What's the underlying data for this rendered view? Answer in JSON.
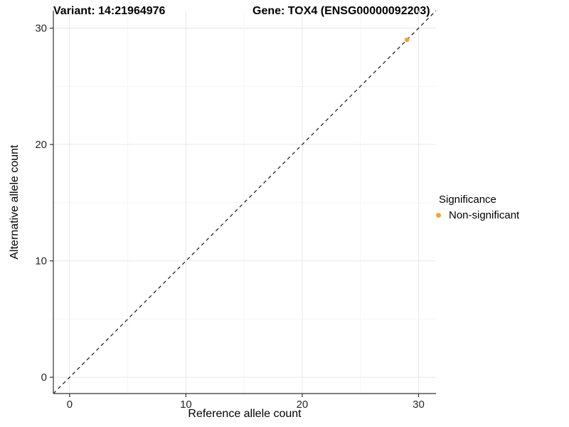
{
  "title": {
    "variant": "Variant: 14:21964976",
    "gene": "Gene: TOX4 (ENSG00000092203)"
  },
  "legend": {
    "title": "Significance",
    "items": [
      {
        "label": "Non-significant",
        "color": "#F6A23C"
      }
    ]
  },
  "chart_data": {
    "type": "scatter",
    "title": "Variant: 14:21964976    Gene: TOX4 (ENSG00000092203)",
    "xlabel": "Reference allele count",
    "ylabel": "Alternative allele count",
    "xlim": [
      -1.4,
      31.5
    ],
    "ylim": [
      -1.4,
      31.5
    ],
    "x_ticks": [
      0,
      10,
      20,
      30
    ],
    "y_ticks": [
      0,
      10,
      20,
      30
    ],
    "x_minor_ticks": [
      5,
      15,
      25
    ],
    "y_minor_ticks": [
      5,
      15,
      25
    ],
    "grid": true,
    "legend_title": "Significance",
    "legend_position": "right",
    "series": [
      {
        "name": "Non-significant",
        "color": "#F6A23C",
        "points": [
          {
            "x": 29,
            "y": 29
          }
        ]
      }
    ],
    "reference_line": {
      "type": "abline",
      "slope": 1,
      "intercept": 0,
      "style": "dashed",
      "color": "#000000"
    },
    "colors": {
      "background": "#ffffff",
      "axis_line": "#333333",
      "grid_major": "#e8e8e8",
      "grid_minor": "#f4f4f4",
      "tick_text": "#262626"
    }
  }
}
